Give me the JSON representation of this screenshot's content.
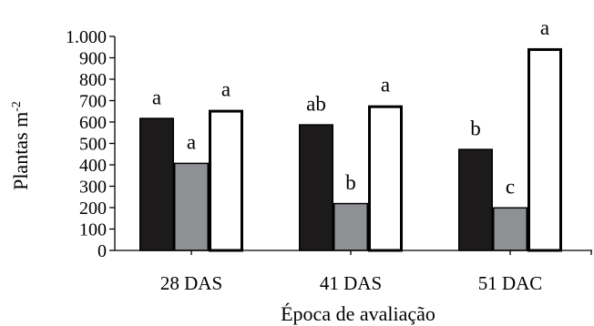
{
  "chart_data": {
    "type": "bar",
    "categories": [
      "28 DAS",
      "41 DAS",
      "51 DAC"
    ],
    "series": [
      {
        "values": [
          620,
          590,
          475
        ],
        "color": "#1c1a1b",
        "letters": [
          "a",
          "ab",
          "b"
        ]
      },
      {
        "values": [
          410,
          222,
          202
        ],
        "color": "#8e9093",
        "letters": [
          "a",
          "b",
          "c"
        ]
      },
      {
        "values": [
          657,
          678,
          945
        ],
        "color": "#ffffff",
        "letters": [
          "a",
          "a",
          "a"
        ]
      }
    ],
    "ylim": [
      0,
      1000
    ],
    "yticks": [
      0,
      100,
      200,
      300,
      400,
      500,
      600,
      700,
      800,
      900,
      1000
    ],
    "ytick_labels": [
      "0",
      "100",
      "200",
      "300",
      "400",
      "500",
      "600",
      "700",
      "800",
      "900",
      "1.000"
    ],
    "ylabel": "Plantas m",
    "ylabel_sup": "-2",
    "xlabel": "Época de avaliação",
    "grid": false,
    "legend": "none"
  }
}
